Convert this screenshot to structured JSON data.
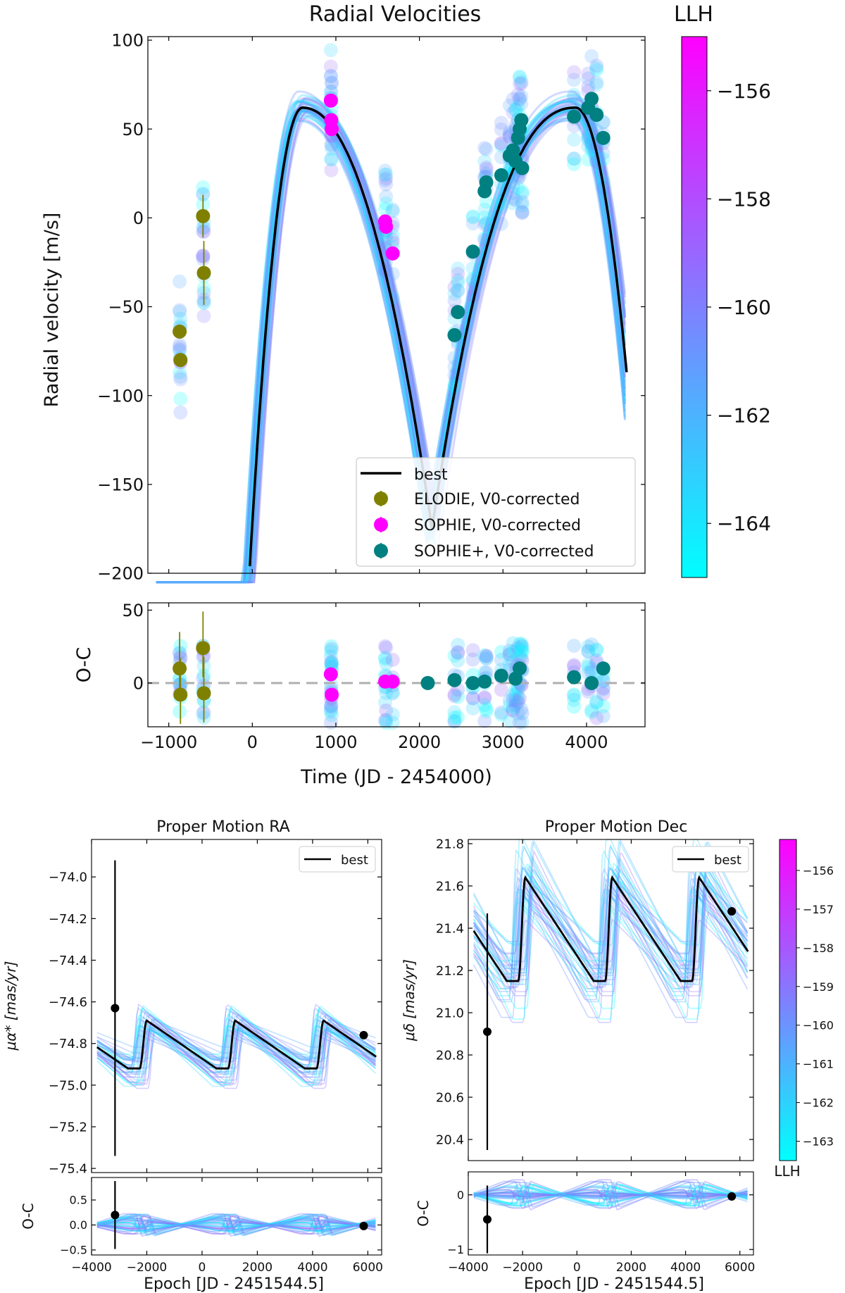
{
  "chart_data": [
    {
      "id": "rv",
      "type": "scatter",
      "title": "Radial Velocities",
      "xlabel": "Time (JD - 2454000)",
      "ylabel": "Radial velocity [m/s]",
      "xlim": [
        -1250,
        4700
      ],
      "ylim": [
        -200,
        102
      ],
      "xticks": [
        -1000,
        0,
        1000,
        2000,
        3000,
        4000
      ],
      "yticks": [
        -200,
        -150,
        -100,
        -50,
        0,
        50,
        100
      ],
      "legend_position": "lower-right",
      "best_fit_label": "best",
      "series": [
        {
          "name": "ELODIE, V0-corrected",
          "color": "#808000",
          "x": [
            -870,
            -860,
            -590,
            -580
          ],
          "y": [
            -64,
            -80,
            1,
            -31
          ],
          "yerr": [
            4,
            4,
            12,
            18
          ]
        },
        {
          "name": "SOPHIE, V0-corrected",
          "color": "#ff00ff",
          "x": [
            940,
            945,
            950,
            1590,
            1600,
            1680
          ],
          "y": [
            66,
            55,
            50,
            -2,
            -5,
            -20
          ],
          "yerr": [
            2,
            2,
            2,
            2,
            2,
            2
          ]
        },
        {
          "name": "SOPHIE+, V0-corrected",
          "color": "#008080",
          "x": [
            2420,
            2460,
            2640,
            2780,
            2800,
            2980,
            3080,
            3120,
            3150,
            3180,
            3200,
            3220,
            3230,
            3850,
            4020,
            4060,
            4120,
            4200
          ],
          "y": [
            -66,
            -53,
            -19,
            15,
            20,
            24,
            35,
            38,
            32,
            45,
            50,
            55,
            28,
            57,
            62,
            67,
            58,
            45
          ],
          "yerr": [
            2,
            2,
            2,
            2,
            2,
            2,
            2,
            2,
            2,
            2,
            2,
            2,
            2,
            2,
            2,
            2,
            2,
            2
          ]
        }
      ],
      "residuals": {
        "ylabel": "O-C",
        "ylim": [
          -30,
          55
        ],
        "yticks": [
          0,
          50
        ],
        "x": [
          -870,
          -860,
          -590,
          -580,
          940,
          950,
          1590,
          1680,
          2100,
          2420,
          2640,
          2780,
          2980,
          3150,
          3200,
          3850,
          4060,
          4200
        ],
        "y": [
          10,
          -8,
          24,
          -7,
          6,
          -8,
          1,
          1,
          0,
          2,
          0,
          1,
          5,
          3,
          10,
          4,
          0,
          10
        ]
      },
      "colorbar": {
        "label": "LLH",
        "range": [
          -165,
          -155
        ],
        "ticks": [
          -156,
          -158,
          -160,
          -162,
          -164
        ]
      }
    },
    {
      "id": "pmra",
      "type": "line",
      "title": "Proper Motion RA",
      "xlabel": "Epoch [JD - 2451544.5]",
      "ylabel": "μα* [mas/yr]",
      "xlim": [
        -4000,
        6500
      ],
      "ylim": [
        -75.42,
        -73.82
      ],
      "xticks": [
        -4000,
        -2000,
        0,
        2000,
        4000,
        6000
      ],
      "yticks": [
        -74.0,
        -74.2,
        -74.4,
        -74.6,
        -74.8,
        -75.0,
        -75.2,
        -75.4
      ],
      "legend_label": "best",
      "legend_position": "top-right",
      "best_fit": {
        "period": 3200,
        "peak_epoch": -2000,
        "low": -74.92,
        "high": -74.69,
        "start": -74.78
      },
      "points": [
        {
          "x": -3150,
          "y": -74.63,
          "yerr": 0.71
        },
        {
          "x": 5850,
          "y": -74.76,
          "yerr": 0.01
        }
      ],
      "residuals": {
        "ylabel": "O-C",
        "ylim": [
          -0.6,
          0.95
        ],
        "yticks": [
          0.5,
          0.0,
          -0.5
        ],
        "points": [
          {
            "x": -3150,
            "y": 0.2,
            "yerr": 0.68
          },
          {
            "x": 5850,
            "y": -0.02,
            "yerr": 0.01
          }
        ]
      }
    },
    {
      "id": "pmdec",
      "type": "line",
      "title": "Proper Motion Dec",
      "xlabel": "Epoch [JD - 2451544.5]",
      "ylabel": "μδ [mas/yr]",
      "xlim": [
        -4000,
        6500
      ],
      "ylim": [
        20.3,
        21.82
      ],
      "xticks": [
        -4000,
        -2000,
        0,
        2000,
        4000,
        6000
      ],
      "yticks": [
        21.8,
        21.6,
        21.4,
        21.2,
        21.0,
        20.8,
        20.6,
        20.4
      ],
      "legend_label": "best",
      "legend_position": "top-right",
      "best_fit": {
        "period": 3200,
        "peak_epoch": -1900,
        "low": 21.15,
        "high": 21.64,
        "start": 21.42
      },
      "points": [
        {
          "x": -3300,
          "y": 20.91,
          "yerr": 0.56
        },
        {
          "x": 5700,
          "y": 21.48,
          "yerr": 0.01
        }
      ],
      "residuals": {
        "ylabel": "O-C",
        "ylim": [
          -1.1,
          0.42
        ],
        "yticks": [
          0,
          -1
        ],
        "points": [
          {
            "x": -3300,
            "y": -0.45,
            "yerr": 0.62
          },
          {
            "x": 5700,
            "y": -0.03,
            "yerr": 0.01
          }
        ]
      },
      "colorbar": {
        "label": "LLH",
        "range": [
          -163.5,
          -155.2
        ],
        "ticks": [
          -156,
          -157,
          -158,
          -159,
          -160,
          -161,
          -162,
          -163
        ]
      }
    }
  ]
}
